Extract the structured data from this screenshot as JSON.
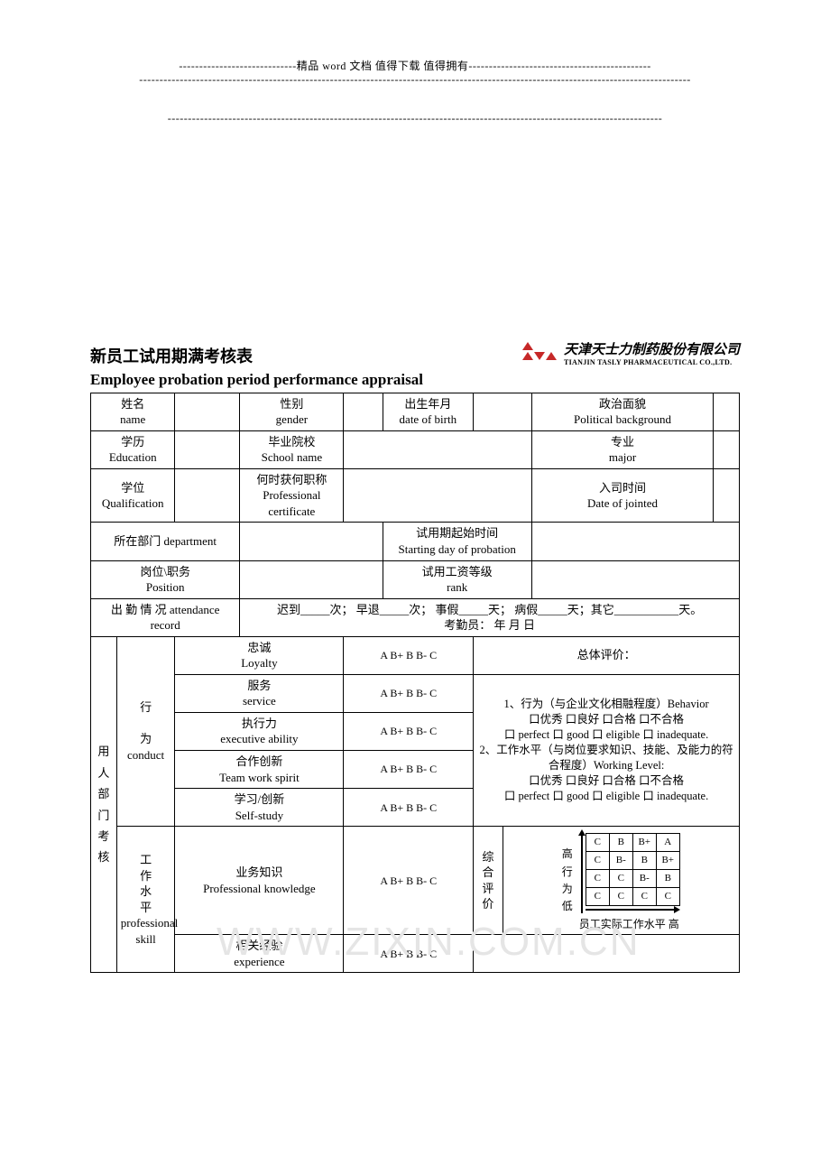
{
  "header": {
    "line1_prefix": "-----------------------------精品 word 文档  值得下载  值得拥有---------------------------------------------",
    "line2": "----------------------------------------------------------------------------------------------------------------------------------------",
    "line3": "--------------------------------------------------------------------------------------------------------------------------"
  },
  "watermark": "WWW.ZIXIN.COM.CN",
  "logo": {
    "company_cn": "天津天士力制药股份有限公司",
    "company_en": "TIANJIN TASLY PHARMACEUTICAL CO.,LTD."
  },
  "titles": {
    "cn": "新员工试用期满考核表",
    "en": "Employee probation period performance appraisal"
  },
  "labels": {
    "name_cn": "姓名",
    "name_en": "name",
    "gender_cn": "性别",
    "gender_en": "gender",
    "dob_cn": "出生年月",
    "dob_en": "date of birth",
    "political_cn": "政治面貌",
    "political_en": "Political background",
    "edu_cn": "学历",
    "edu_en": "Education",
    "school_cn": "毕业院校",
    "school_en": "School name",
    "major_cn": "专业",
    "major_en": "major",
    "qual_cn": "学位",
    "qual_en": "Qualification",
    "cert_cn": "何时获何职称",
    "cert_en": "Professional certificate",
    "join_cn": "入司时间",
    "join_en": "Date of jointed",
    "dept": "所在部门 department",
    "probation_start_cn": "试用期起始时间",
    "probation_start_en": "Starting day of probation",
    "position_cn": "岗位\\职务",
    "position_en": "Position",
    "rank_cn": "试用工资等级",
    "rank_en": "rank",
    "attendance_label": "出 勤 情 况 attendance record",
    "attendance_body": "迟到_____次；  早退_____次；  事假_____天；  病假_____天；其它___________天。",
    "attendance_signer": "考勤员：                 年    月   日",
    "side_label": "用人部门考核",
    "conduct_label": "行\n\n为\nconduct",
    "conduct_cn1": "行",
    "conduct_cn2": "为",
    "conduct_en": "conduct",
    "skill_cn1": "工",
    "skill_cn2": "作",
    "skill_cn3": "水",
    "skill_cn4": "平",
    "skill_en": "professional skill",
    "loyalty_cn": "忠诚",
    "loyalty_en": "Loyalty",
    "service_cn": "服务",
    "service_en": "service",
    "exec_cn": "执行力",
    "exec_en": "executive ability",
    "team_cn": "合作创新",
    "team_en": "Team work spirit",
    "study_cn": "学习/创新",
    "study_en": "Self-study",
    "knowledge_cn": "业务知识",
    "knowledge_en": "Professional knowledge",
    "exp_cn": "相关经验",
    "exp_en": "experience",
    "ratings": "A B+ B B- C",
    "overall": "总体评价：",
    "eval_1": "1、行为（与企业文化相融程度）Behavior",
    "eval_opts_cn": "口优秀  口良好     口合格    口不合格",
    "eval_opts_en": "口 perfect  口 good 口 eligible 口 inadequate.",
    "eval_2": "2、工作水平（与岗位要求知识、技能、及能力的符合程度）Working Level:",
    "matrix_side": "综合评价",
    "matrix_y_high": "高",
    "matrix_y_mid": "行为",
    "matrix_y_mid_1": "行",
    "matrix_y_mid_2": "为",
    "matrix_y_low": "低",
    "matrix_x": "员工实际工作水平   高"
  },
  "matrix": {
    "rows": [
      [
        "C",
        "B",
        "B+",
        "A"
      ],
      [
        "C",
        "B-",
        "B",
        "B+"
      ],
      [
        "C",
        "C",
        "B-",
        "B"
      ],
      [
        "C",
        "C",
        "C",
        "C"
      ]
    ]
  }
}
